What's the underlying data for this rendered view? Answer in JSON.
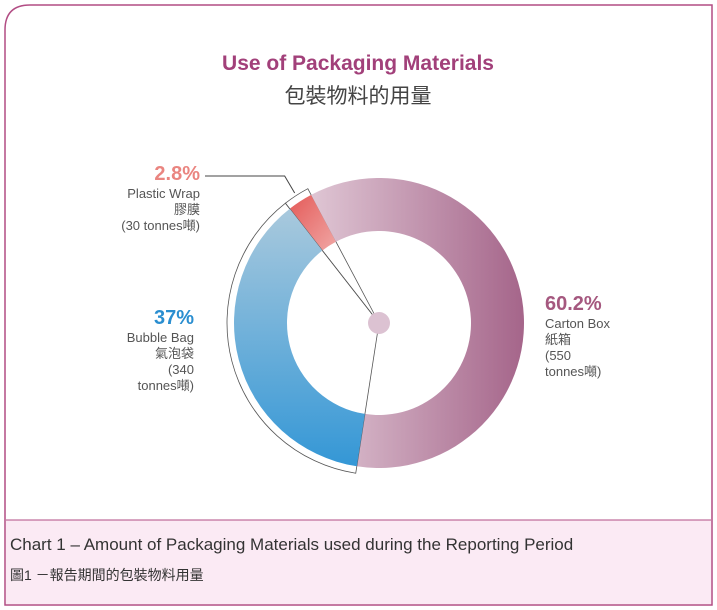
{
  "chart_data": {
    "type": "donut",
    "title": "Use of Packaging Materials",
    "subtitle": "包裝物料的用量",
    "categories": [
      "Carton Box",
      "Bubble Bag",
      "Plastic Wrap"
    ],
    "labels_zh": [
      "紙箱",
      "氣泡袋",
      "膠膜"
    ],
    "labels_amount": [
      "(550 tonnes噸)",
      "(340 tonnes噸)",
      "(30 tonnes噸)"
    ],
    "values": [
      60.2,
      37,
      2.8
    ],
    "value_labels": [
      "60.2%",
      "37%",
      "2.8%"
    ],
    "colors": [
      [
        "#dfc6d4",
        "#a5658a"
      ],
      [
        "#a9c9dd",
        "#3497d6"
      ],
      [
        "#e45a58",
        "#f0a6a4"
      ]
    ],
    "label_colors": [
      "#a5587f",
      "#2a8ed0",
      "#ea8580"
    ],
    "caption": "Chart 1 – Amount of Packaging Materials used during the Reporting Period",
    "caption_zh": "圖1 －報告期間的包裝物料用量"
  }
}
